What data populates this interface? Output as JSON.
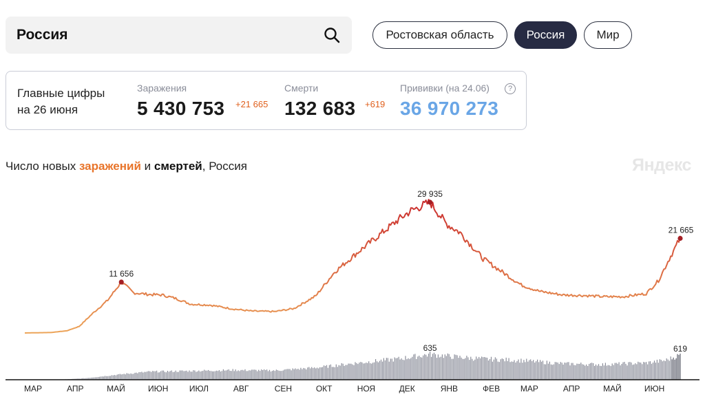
{
  "search": {
    "value": "Россия"
  },
  "regions": [
    {
      "label": "Ростовская область",
      "active": false
    },
    {
      "label": "Россия",
      "active": true
    },
    {
      "label": "Мир",
      "active": false
    }
  ],
  "stats": {
    "title_line1": "Главные цифры",
    "title_line2": "на 26 июня",
    "infections": {
      "label": "Заражения",
      "value": "5 430 753",
      "delta": "+21 665"
    },
    "deaths": {
      "label": "Смерти",
      "value": "132 683",
      "delta": "+619"
    },
    "vaccinations": {
      "label": "Прививки (на 24.06)",
      "value": "36 970 273"
    },
    "help": "?"
  },
  "chart_header": {
    "prefix": "Число новых ",
    "infections_word": "заражений",
    "middle": " и ",
    "deaths_word": "смертей",
    "suffix": ", Россия"
  },
  "brand": "Яндекс",
  "colors": {
    "low": "#eeaa5a",
    "high": "#c8252a",
    "deaths_bar": "#8a8d99",
    "peak_dot": "#a41f24"
  },
  "chart_data": {
    "type": "line",
    "x_ticks": [
      "МАР",
      "АПР",
      "МАЙ",
      "ИЮН",
      "ИЮЛ",
      "АВГ",
      "СЕН",
      "ОКТ",
      "НОЯ",
      "ДЕК",
      "ЯНВ",
      "ФЕВ",
      "МАР",
      "АПР",
      "МАЙ",
      "ИЮН"
    ],
    "infections_series": {
      "unit": "cases per day",
      "points": [
        [
          "2020-03-01",
          0
        ],
        [
          "2020-03-20",
          100
        ],
        [
          "2020-04-01",
          500
        ],
        [
          "2020-04-10",
          1500
        ],
        [
          "2020-04-20",
          4500
        ],
        [
          "2020-05-01",
          7500
        ],
        [
          "2020-05-11",
          11656
        ],
        [
          "2020-05-20",
          9200
        ],
        [
          "2020-06-01",
          8800
        ],
        [
          "2020-06-10",
          8700
        ],
        [
          "2020-06-20",
          7900
        ],
        [
          "2020-07-01",
          6600
        ],
        [
          "2020-07-15",
          6400
        ],
        [
          "2020-08-01",
          5500
        ],
        [
          "2020-08-15",
          5000
        ],
        [
          "2020-09-01",
          4900
        ],
        [
          "2020-09-15",
          5600
        ],
        [
          "2020-10-01",
          8500
        ],
        [
          "2020-10-15",
          14000
        ],
        [
          "2020-11-01",
          18500
        ],
        [
          "2020-11-15",
          22000
        ],
        [
          "2020-12-01",
          26000
        ],
        [
          "2020-12-10",
          28000
        ],
        [
          "2020-12-24",
          29935
        ],
        [
          "2021-01-05",
          25000
        ],
        [
          "2021-01-15",
          23000
        ],
        [
          "2021-02-01",
          17000
        ],
        [
          "2021-02-15",
          14000
        ],
        [
          "2021-03-01",
          11000
        ],
        [
          "2021-03-15",
          9500
        ],
        [
          "2021-04-01",
          8700
        ],
        [
          "2021-04-15",
          8600
        ],
        [
          "2021-05-01",
          8300
        ],
        [
          "2021-05-15",
          8300
        ],
        [
          "2021-06-01",
          9000
        ],
        [
          "2021-06-10",
          12000
        ],
        [
          "2021-06-18",
          17000
        ],
        [
          "2021-06-26",
          21665
        ]
      ],
      "labels": [
        {
          "x": "2020-05-11",
          "value": 11656,
          "text": "11 656"
        },
        {
          "x": "2020-12-24",
          "value": 29935,
          "text": "29 935"
        },
        {
          "x": "2021-06-26",
          "value": 21665,
          "text": "21 665"
        }
      ]
    },
    "deaths_series": {
      "unit": "deaths per day",
      "points": [
        [
          "2020-03-01",
          0
        ],
        [
          "2020-04-01",
          10
        ],
        [
          "2020-04-15",
          40
        ],
        [
          "2020-05-01",
          100
        ],
        [
          "2020-05-15",
          150
        ],
        [
          "2020-06-01",
          200
        ],
        [
          "2020-07-01",
          220
        ],
        [
          "2020-08-01",
          240
        ],
        [
          "2020-09-01",
          230
        ],
        [
          "2020-10-01",
          300
        ],
        [
          "2020-11-01",
          420
        ],
        [
          "2020-12-01",
          520
        ],
        [
          "2020-12-24",
          635
        ],
        [
          "2021-01-15",
          560
        ],
        [
          "2021-02-01",
          520
        ],
        [
          "2021-03-01",
          480
        ],
        [
          "2021-04-01",
          400
        ],
        [
          "2021-05-01",
          380
        ],
        [
          "2021-06-01",
          420
        ],
        [
          "2021-06-15",
          480
        ],
        [
          "2021-06-26",
          619
        ]
      ],
      "labels": [
        {
          "x": "2020-12-24",
          "value": 635,
          "text": "635"
        },
        {
          "x": "2021-06-26",
          "value": 619,
          "text": "619"
        }
      ]
    }
  }
}
